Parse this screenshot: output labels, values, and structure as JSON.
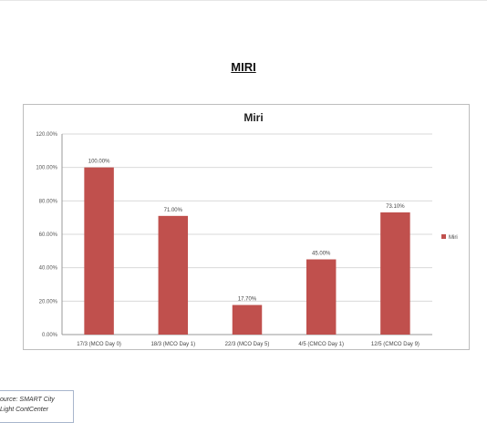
{
  "page": {
    "heading": "MIRI",
    "source_note": [
      "ource: SMART City",
      "Light ContCenter"
    ]
  },
  "colors": {
    "bar": "#c0504d",
    "grid": "#d9d9d9",
    "axis": "#9a9a9a"
  },
  "chart_data": {
    "type": "bar",
    "title": "Miri",
    "categories": [
      "17/3 (MCO Day 0)",
      "18/3 (MCO Day 1)",
      "22/3 (MCO Day 5)",
      "4/5 (CMCO Day 1)",
      "12/5 (CMCO Day 9)"
    ],
    "series": [
      {
        "name": "Miri",
        "values": [
          100.0,
          71.0,
          17.7,
          45.0,
          73.1
        ],
        "data_labels": [
          "100.00%",
          "71.00%",
          "17.70%",
          "45.00%",
          "73.10%"
        ]
      }
    ],
    "yticks": [
      "0.00%",
      "20.00%",
      "40.00%",
      "60.00%",
      "80.00%",
      "100.00%",
      "120.00%"
    ],
    "ylim": [
      0,
      120
    ],
    "grid": true,
    "legend_position": "right"
  }
}
